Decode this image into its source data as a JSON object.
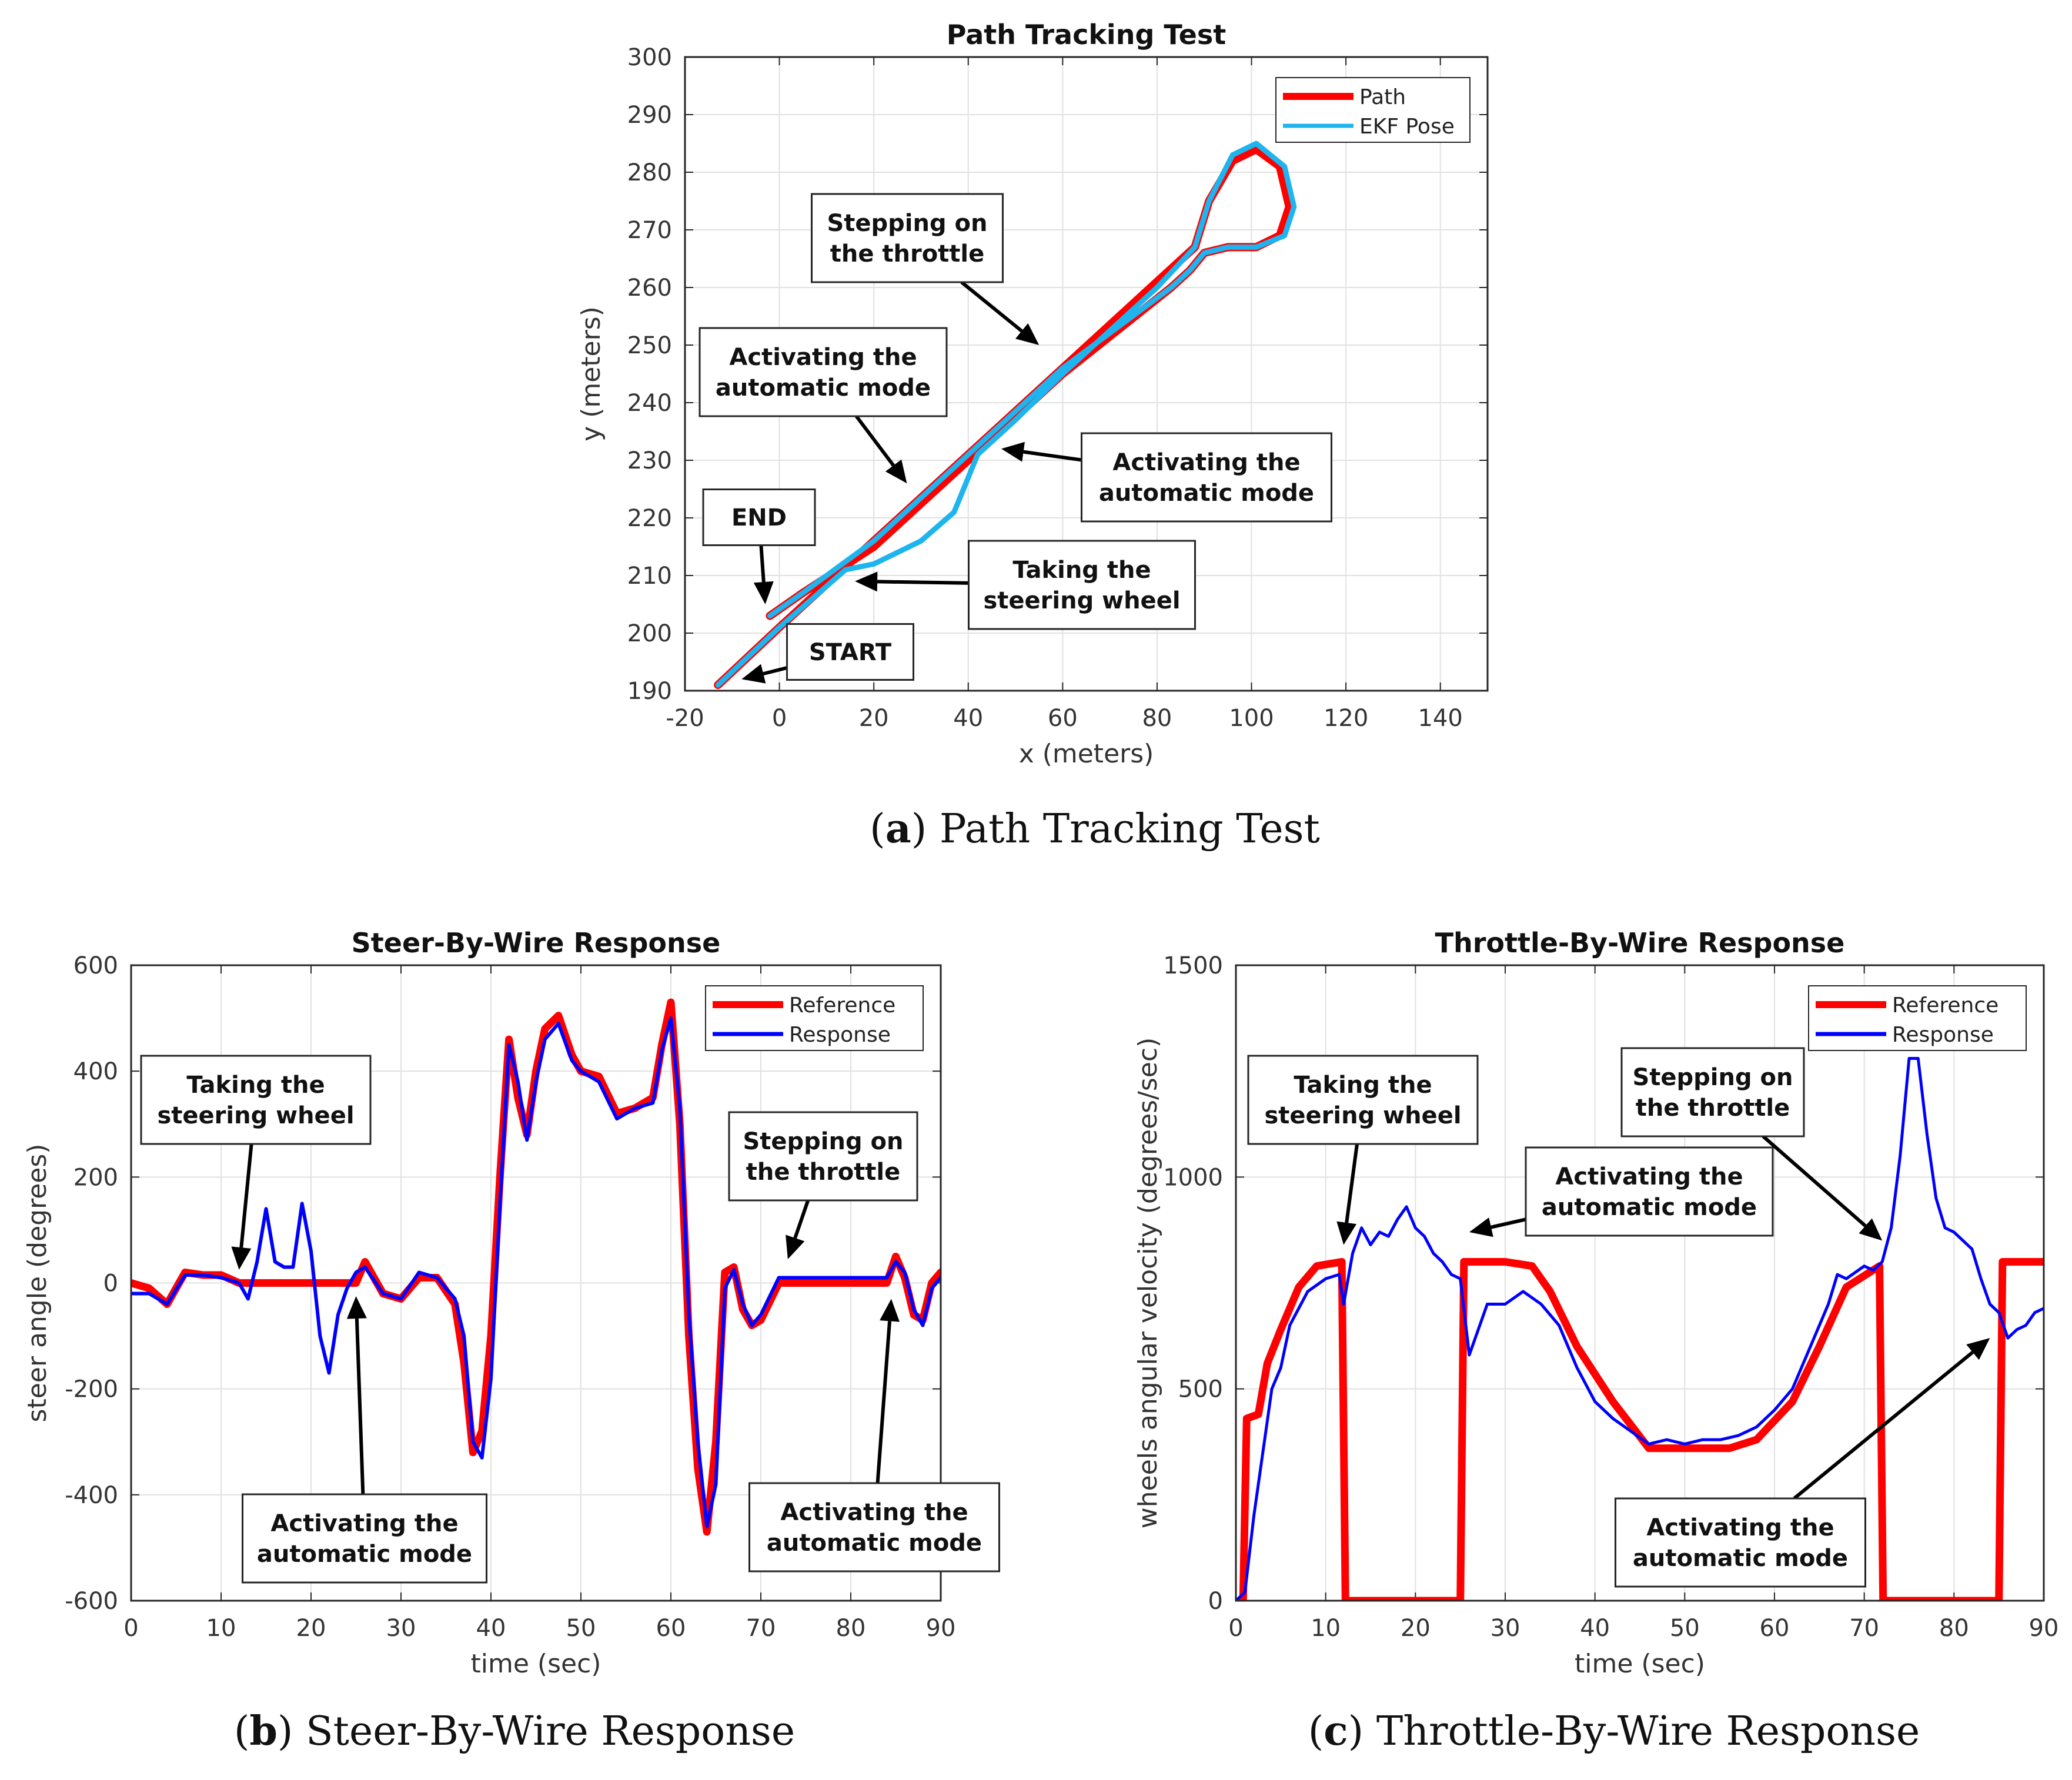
{
  "figure": {
    "captions": [
      {
        "letter": "a",
        "text": "Path Tracking Test"
      },
      {
        "letter": "b",
        "text": "Steer-By-Wire Response"
      },
      {
        "letter": "c",
        "text": "Throttle-By-Wire Response"
      }
    ]
  },
  "chart_data": [
    {
      "type": "line",
      "title": "Path Tracking Test",
      "xlabel": "x (meters)",
      "ylabel": "y (meters)",
      "xlim": [
        -20,
        150
      ],
      "ylim": [
        190,
        300
      ],
      "xticks": [
        "-20",
        "0",
        "20",
        "40",
        "60",
        "80",
        "100",
        "120",
        "140"
      ],
      "yticks": [
        "190",
        "200",
        "210",
        "220",
        "230",
        "240",
        "250",
        "260",
        "270",
        "280",
        "290",
        "300"
      ],
      "grid": true,
      "legend": "top-right",
      "colors": {
        "Path": "#ff0000",
        "EKF Pose": "#1eb4ee"
      },
      "series": [
        {
          "name": "Path",
          "x": [
            -13,
            0,
            20,
            40,
            60,
            80,
            88,
            91,
            96,
            101,
            106,
            108,
            106,
            101,
            95,
            90,
            87,
            83,
            60,
            40,
            20,
            5,
            -2
          ],
          "y": [
            191,
            201,
            216,
            231,
            246,
            261,
            267,
            275,
            282,
            284,
            281,
            274,
            269,
            267,
            267,
            266,
            263,
            260,
            245,
            230,
            215,
            207,
            203
          ]
        },
        {
          "name": "EKF Pose",
          "x": [
            -13,
            0,
            14,
            20,
            30,
            37,
            42,
            50,
            60,
            80,
            88,
            91,
            96,
            101,
            107,
            109,
            107,
            101,
            95,
            90,
            87,
            83,
            60,
            40,
            20,
            5,
            -2
          ],
          "y": [
            191,
            201,
            211,
            212,
            216,
            221,
            231,
            237,
            245,
            260,
            267,
            275,
            283,
            285,
            281,
            274,
            269,
            267,
            267,
            266,
            263,
            260,
            246,
            231,
            216,
            207,
            203
          ]
        }
      ],
      "annotations": [
        {
          "text": "Stepping on\nthe throttle",
          "point": [
            55,
            250
          ]
        },
        {
          "text": "Activating the\nautomatic mode",
          "point": [
            27,
            226
          ]
        },
        {
          "text": "Activating the\nautomatic mode",
          "point": [
            47,
            232
          ]
        },
        {
          "text": "END",
          "point": [
            -3,
            205
          ]
        },
        {
          "text": "Taking the\nsteering wheel",
          "point": [
            16,
            209
          ]
        },
        {
          "text": "START",
          "point": [
            -8,
            192
          ]
        }
      ]
    },
    {
      "type": "line",
      "title": "Steer-By-Wire Response",
      "xlabel": "time (sec)",
      "ylabel": "steer angle (degrees)",
      "xlim": [
        0,
        90
      ],
      "ylim": [
        -600,
        600
      ],
      "xticks": [
        "0",
        "10",
        "20",
        "30",
        "40",
        "50",
        "60",
        "70",
        "80",
        "90"
      ],
      "yticks": [
        "-600",
        "-400",
        "-200",
        "0",
        "200",
        "400",
        "600"
      ],
      "grid": true,
      "legend": "top-right",
      "colors": {
        "Reference": "#ff0000",
        "Response": "#0000ff"
      },
      "series": [
        {
          "name": "Reference",
          "x": [
            0,
            2,
            4,
            6,
            8,
            10,
            12,
            25,
            26,
            28,
            30,
            32,
            34,
            36,
            37,
            38,
            39,
            40,
            41,
            42,
            43,
            44,
            45,
            46,
            47.5,
            49,
            50,
            52,
            54,
            56,
            58,
            59,
            60,
            61,
            62,
            63,
            64,
            65,
            66,
            67,
            68,
            69,
            70,
            72,
            84,
            85,
            86,
            87,
            88,
            89,
            90
          ],
          "y": [
            0,
            -10,
            -40,
            20,
            15,
            15,
            0,
            0,
            40,
            -20,
            -30,
            10,
            10,
            -40,
            -150,
            -320,
            -280,
            -100,
            200,
            460,
            350,
            280,
            400,
            480,
            505,
            430,
            400,
            390,
            320,
            330,
            350,
            450,
            530,
            300,
            -100,
            -350,
            -470,
            -300,
            20,
            30,
            -50,
            -80,
            -70,
            0,
            0,
            50,
            10,
            -60,
            -70,
            0,
            20
          ]
        },
        {
          "name": "Response",
          "x": [
            0,
            2,
            4,
            6,
            8,
            10,
            12,
            13,
            14,
            15,
            16,
            17,
            18,
            19,
            20,
            21,
            22,
            23,
            24,
            25,
            26,
            28,
            30,
            32,
            34,
            36,
            37,
            38,
            39,
            40,
            41,
            42,
            43,
            44,
            45,
            46,
            47.5,
            49,
            50,
            52,
            54,
            56,
            58,
            59,
            60,
            61,
            62,
            63,
            64,
            65,
            66,
            67,
            68,
            69,
            70,
            72,
            84,
            85,
            86,
            87,
            88,
            89,
            90
          ],
          "y": [
            -20,
            -20,
            -40,
            15,
            15,
            10,
            0,
            -30,
            40,
            140,
            40,
            30,
            30,
            150,
            60,
            -100,
            -170,
            -60,
            -10,
            20,
            30,
            -20,
            -30,
            20,
            10,
            -30,
            -100,
            -300,
            -330,
            -180,
            150,
            450,
            380,
            270,
            380,
            460,
            490,
            420,
            400,
            380,
            310,
            330,
            340,
            440,
            500,
            330,
            -60,
            -300,
            -460,
            -380,
            -10,
            25,
            -40,
            -80,
            -60,
            10,
            10,
            40,
            20,
            -50,
            -80,
            -10,
            10
          ]
        }
      ],
      "annotations": [
        {
          "text": "Taking the\nsteering wheel",
          "point": [
            12,
            25
          ]
        },
        {
          "text": "Stepping on\nthe throttle",
          "point": [
            73,
            45
          ]
        },
        {
          "text": "Activating the\nautomatic mode",
          "point": [
            25,
            -25
          ]
        },
        {
          "text": "Activating the\nautomatic mode",
          "point": [
            84.5,
            -30
          ]
        }
      ]
    },
    {
      "type": "line",
      "title": "Throttle-By-Wire Response",
      "xlabel": "time (sec)",
      "ylabel": "wheels angular velocity (degrees/sec)",
      "xlim": [
        0,
        90
      ],
      "ylim": [
        0,
        1500
      ],
      "xticks": [
        "0",
        "10",
        "20",
        "30",
        "40",
        "50",
        "60",
        "70",
        "80",
        "90"
      ],
      "yticks": [
        "0",
        "500",
        "1000",
        "1500"
      ],
      "grid": true,
      "legend": "top-right",
      "colors": {
        "Reference": "#ff0000",
        "Response": "#0000ff"
      },
      "series": [
        {
          "name": "Reference",
          "x": [
            0.8,
            1.2,
            2.5,
            3.5,
            5,
            7,
            9,
            11.8,
            12.2,
            25,
            25.4,
            30,
            33,
            35,
            38,
            42,
            46,
            50,
            55,
            58,
            62,
            65,
            68,
            71.7,
            72.1,
            85,
            85.4,
            90
          ],
          "y": [
            0,
            430,
            440,
            560,
            640,
            740,
            790,
            800,
            0,
            0,
            800,
            800,
            790,
            730,
            600,
            470,
            360,
            360,
            360,
            380,
            470,
            600,
            740,
            790,
            0,
            0,
            800,
            800
          ]
        },
        {
          "name": "Response",
          "x": [
            0,
            1,
            2,
            3,
            4,
            5,
            6,
            8,
            10,
            11.5,
            12,
            13,
            14,
            15,
            16,
            17,
            18,
            19,
            20,
            21,
            22,
            23,
            24,
            25,
            26,
            27,
            28,
            30,
            32,
            34,
            36,
            38,
            40,
            42,
            44,
            46,
            48,
            50,
            52,
            54,
            56,
            58,
            60,
            62,
            64,
            66,
            67,
            68,
            70,
            71,
            72,
            73,
            74,
            75,
            76,
            77,
            78,
            79,
            80,
            81,
            82,
            83,
            84,
            85,
            86,
            87,
            88,
            89,
            90
          ],
          "y": [
            0,
            20,
            200,
            350,
            500,
            550,
            650,
            730,
            760,
            770,
            700,
            820,
            880,
            840,
            870,
            860,
            900,
            930,
            880,
            860,
            820,
            800,
            770,
            760,
            580,
            640,
            700,
            700,
            730,
            700,
            650,
            550,
            470,
            430,
            400,
            370,
            380,
            370,
            380,
            380,
            390,
            410,
            450,
            500,
            600,
            700,
            770,
            760,
            790,
            780,
            800,
            880,
            1050,
            1280,
            1280,
            1100,
            950,
            880,
            870,
            850,
            830,
            760,
            700,
            680,
            620,
            640,
            650,
            680,
            690
          ]
        }
      ],
      "annotations": [
        {
          "text": "Taking the\nsteering wheel",
          "point": [
            12,
            840
          ]
        },
        {
          "text": "Activating the\nautomatic mode",
          "point": [
            26,
            870
          ]
        },
        {
          "text": "Stepping on\nthe throttle",
          "point": [
            72,
            850
          ]
        },
        {
          "text": "Activating the\nautomatic mode",
          "point": [
            84,
            620
          ]
        }
      ]
    }
  ]
}
